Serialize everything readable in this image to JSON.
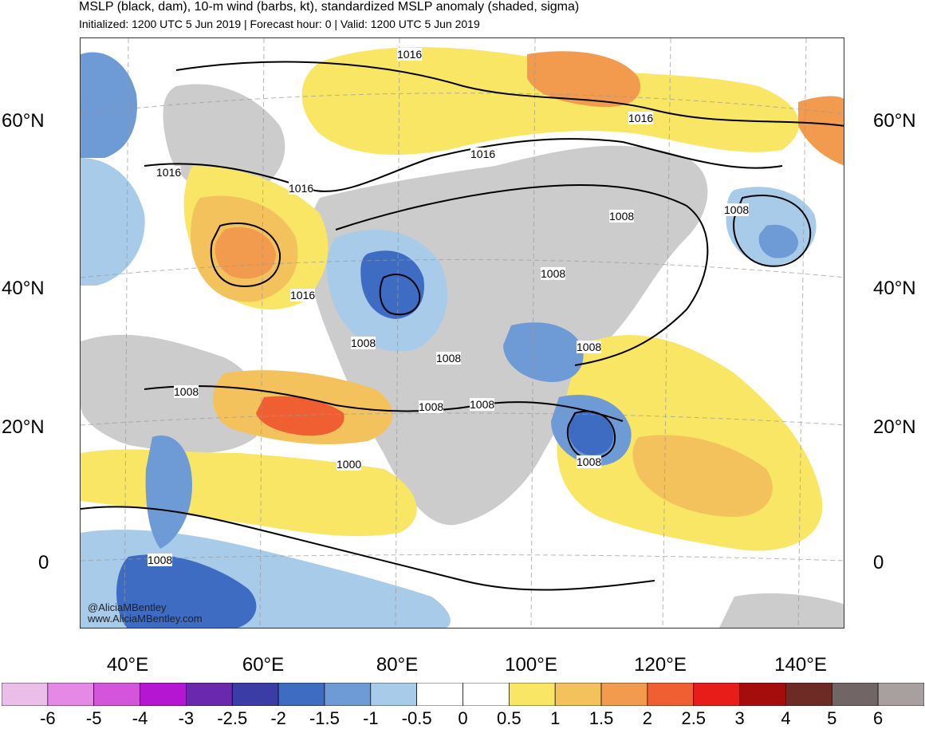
{
  "header": {
    "title": "MSLP (black, dam), 10-m wind (barbs, kt), standardized MSLP anomaly (shaded, sigma)",
    "subtitle": "Initialized: 1200 UTC 5 Jun 2019 | Forecast hour: 0 | Valid: 1200 UTC 5 Jun 2019"
  },
  "axes": {
    "lat_labels": [
      "60°N",
      "40°N",
      "20°N",
      "0"
    ],
    "lon_labels": [
      "40°E",
      "60°E",
      "80°E",
      "100°E",
      "120°E",
      "140°E"
    ]
  },
  "map": {
    "region": "Asia, Europe, Middle East, Indian Ocean, western Pacific",
    "anomaly_colors": {
      "neutral": "#ffffff",
      "neg_0_5": "#a9cce8",
      "neg_1": "#7aa5d8",
      "neg_1_5": "#4a74c4",
      "neg_2": "#3b4fb0",
      "pos_0_5": "#f8e46a",
      "pos_1": "#f5c45c",
      "pos_1_5": "#f29c50",
      "pos_2": "#f26a3c",
      "high": "#cccccc"
    },
    "contour_labels": [
      {
        "text": "1016"
      },
      {
        "text": "1016"
      },
      {
        "text": "1016"
      },
      {
        "text": "1016"
      },
      {
        "text": "1016"
      },
      {
        "text": "1016"
      },
      {
        "text": "1008"
      },
      {
        "text": "1008"
      },
      {
        "text": "1008"
      },
      {
        "text": "1008"
      },
      {
        "text": "1008"
      },
      {
        "text": "1008"
      },
      {
        "text": "1008"
      },
      {
        "text": "1008"
      },
      {
        "text": "1008"
      },
      {
        "text": "1008"
      },
      {
        "text": "1008"
      },
      {
        "text": "1000"
      }
    ],
    "credits": [
      "@AliciaMBentley",
      "www.AliciaMBentley.com"
    ]
  },
  "colorbar": {
    "labels": [
      "-6",
      "-5",
      "-4",
      "-3",
      "-2.5",
      "-2",
      "-1.5",
      "-1",
      "-0.5",
      "0",
      "0.5",
      "1",
      "1.5",
      "2",
      "2.5",
      "3",
      "4",
      "5",
      "6"
    ],
    "colors": [
      "#ebbde9",
      "#e688e6",
      "#d455dc",
      "#b516d1",
      "#6a28ae",
      "#3b3ca5",
      "#3d6cc2",
      "#6e9ad5",
      "#a7cbe8",
      "#ffffff",
      "#ffffff",
      "#f9e664",
      "#f4c25d",
      "#f29a4d",
      "#f05f32",
      "#e81c18",
      "#a50d0d",
      "#6e2a25",
      "#726565",
      "#a89f9f"
    ]
  }
}
